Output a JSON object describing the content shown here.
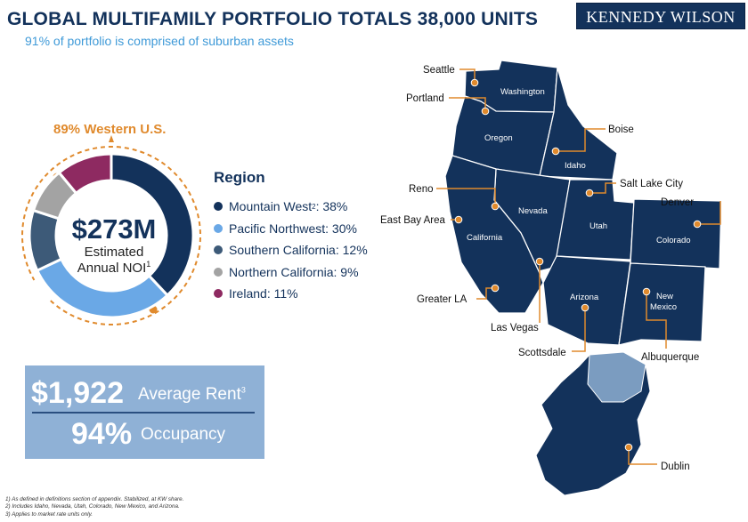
{
  "header": {
    "title": "GLOBAL MULTIFAMILY PORTFOLIO TOTALS 38,000 UNITS",
    "subtitle": "91% of portfolio is comprised of suburban assets",
    "logo_text": "KENNEDY WILSON"
  },
  "donut": {
    "callout": "89% Western U.S.",
    "center_value": "$273M",
    "center_label_line1": "Estimated",
    "center_label_line2": "Annual NOI",
    "center_label_sup": "1"
  },
  "legend": {
    "title": "Region",
    "items": [
      {
        "label": "Mountain West",
        "sup": "2",
        "value_text": ": 38%",
        "color": "#13325b"
      },
      {
        "label": "Pacific Northwest",
        "sup": "",
        "value_text": ": 30%",
        "color": "#6aa8e6"
      },
      {
        "label": "Southern California",
        "sup": "",
        "value_text": ": 12%",
        "color": "#3d5a78"
      },
      {
        "label": "Northern California",
        "sup": "",
        "value_text": ": 9%",
        "color": "#a3a3a3"
      },
      {
        "label": "Ireland",
        "sup": "",
        "value_text": ": 11%",
        "color": "#8e2a61"
      }
    ]
  },
  "chart_data": {
    "type": "pie",
    "categories": [
      "Mountain West",
      "Pacific Northwest",
      "Southern California",
      "Northern California",
      "Ireland"
    ],
    "values": [
      38,
      30,
      12,
      9,
      11
    ],
    "units": "%",
    "colors": [
      "#13325b",
      "#6aa8e6",
      "#3d5a78",
      "#a3a3a3",
      "#8e2a61"
    ]
  },
  "stats": {
    "rent_value": "$1,922",
    "rent_label": "Average Rent",
    "rent_sup": "3",
    "occupancy_value": "94%",
    "occupancy_label": "Occupancy"
  },
  "map": {
    "states": [
      "Washington",
      "Oregon",
      "Idaho",
      "Nevada",
      "California",
      "Utah",
      "Colorado",
      "Arizona",
      "New",
      "Mexico"
    ],
    "cities": [
      "Seattle",
      "Portland",
      "Boise",
      "Salt Lake City",
      "Reno",
      "Denver",
      "East Bay Area",
      "Greater LA",
      "Las Vegas",
      "Scottsdale",
      "Albuquerque",
      "Dublin"
    ],
    "colors": {
      "land": "#13325b",
      "northern_ireland": "#7b9cc0",
      "marker": "#e08a2d"
    }
  },
  "footnotes": [
    "1) As defined in definitions section of appendix. Stabilized, at KW share.",
    "2) Includes Idaho, Nevada, Utah, Colorado, New Mexico, and Arizona.",
    "3) Applies to market rate units only."
  ]
}
